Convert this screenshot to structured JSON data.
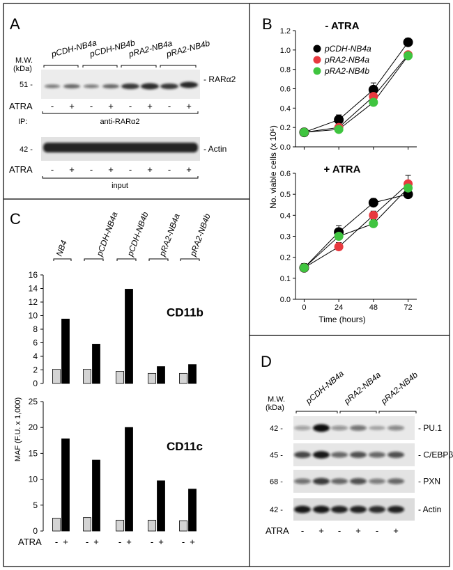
{
  "panel_a": {
    "letter": "A",
    "mw_label": "M.W.",
    "kda_label": "(kDa)",
    "groups": [
      "pCDH-NB4a",
      "pCDH-NB4b",
      "pRA2-NB4a",
      "pRA2-NB4b"
    ],
    "marker_top": "51 -",
    "marker_bottom": "42 -",
    "band_top": "- RARα2",
    "band_bottom": "- Actin",
    "atra_label": "ATRA",
    "ip_label": "IP:",
    "ip_antibody": "anti-RARα2",
    "input_label": "input",
    "treatment": [
      "-",
      "+",
      "-",
      "+",
      "-",
      "+",
      "-",
      "+"
    ]
  },
  "panel_c": {
    "letter": "C",
    "groups": [
      "NB4",
      "pCDH-NB4a",
      "pCDH-NB4b",
      "pRA2-NB4a",
      "pRA2-NB4b"
    ],
    "y_label": "MAF (F.U. x 1,000)",
    "atra_label": "ATRA",
    "treatment": [
      "-",
      "+"
    ]
  },
  "panel_b": {
    "letter": "B",
    "y_label": "No. viable cells (x 10⁶)",
    "x_label": "Time (hours)"
  },
  "panel_d": {
    "letter": "D",
    "mw_label": "M.W.",
    "kda_label": "(kDa)",
    "groups": [
      "pCDH-NB4a",
      "pRA2-NB4a",
      "pRA2-NB4b"
    ],
    "rows": [
      {
        "marker": "42 -",
        "label": "- PU.1"
      },
      {
        "marker": "45 -",
        "label": "- C/EBPβ"
      },
      {
        "marker": "68 -",
        "label": "- PXN"
      },
      {
        "marker": "42 -",
        "label": "- Actin"
      }
    ],
    "atra_label": "ATRA",
    "treatment": [
      "-",
      "+",
      "-",
      "+",
      "-",
      "+"
    ]
  },
  "chart_data": [
    {
      "type": "bar",
      "title": "CD11b",
      "ylabel": "MAF (F.U. x 1,000)",
      "ylim": [
        0,
        16
      ],
      "yticks": [
        0,
        2,
        4,
        6,
        8,
        10,
        12,
        14,
        16
      ],
      "categories": [
        "NB4",
        "pCDH-NB4a",
        "pCDH-NB4b",
        "pRA2-NB4a",
        "pRA2-NB4b"
      ],
      "series": [
        {
          "name": "- ATRA",
          "color": "#d4d4d4",
          "values": [
            2.1,
            2.1,
            1.8,
            1.5,
            1.5
          ]
        },
        {
          "name": "+ ATRA",
          "color": "#000000",
          "values": [
            9.5,
            5.8,
            13.9,
            2.5,
            2.8
          ]
        }
      ]
    },
    {
      "type": "bar",
      "title": "CD11c",
      "ylabel": "MAF (F.U. x 1,000)",
      "ylim": [
        0,
        25
      ],
      "yticks": [
        0,
        5,
        10,
        15,
        20,
        25
      ],
      "categories": [
        "NB4",
        "pCDH-NB4a",
        "pCDH-NB4b",
        "pRA2-NB4a",
        "pRA2-NB4b"
      ],
      "series": [
        {
          "name": "- ATRA",
          "color": "#d4d4d4",
          "values": [
            2.5,
            2.6,
            2.1,
            2.1,
            2.0
          ]
        },
        {
          "name": "+ ATRA",
          "color": "#000000",
          "values": [
            17.8,
            13.7,
            20.0,
            9.7,
            8.1
          ]
        }
      ]
    },
    {
      "type": "line",
      "title": "- ATRA",
      "ylabel": "No. viable cells (x 10⁶)",
      "xlabel": "Time (hours)",
      "x": [
        0,
        24,
        48,
        72
      ],
      "xticks": [
        0,
        24,
        48,
        72
      ],
      "ylim": [
        0,
        1.2
      ],
      "yticks": [
        0.0,
        0.2,
        0.4,
        0.6,
        0.8,
        1.0,
        1.2
      ],
      "series": [
        {
          "name": "pCDH-NB4a",
          "color": "#000000",
          "values": [
            0.15,
            0.28,
            0.59,
            1.08
          ],
          "err": [
            0.03,
            0.05,
            0.07,
            0.04
          ]
        },
        {
          "name": "pRA2-NB4a",
          "color": "#e8393f",
          "values": [
            0.15,
            0.2,
            0.52,
            0.95
          ],
          "err": [
            0.02,
            0.03,
            0.05,
            0.03
          ]
        },
        {
          "name": "pRA2-NB4b",
          "color": "#3fc43f",
          "values": [
            0.15,
            0.18,
            0.46,
            0.94
          ],
          "err": [
            0.02,
            0.02,
            0.04,
            0.03
          ]
        }
      ]
    },
    {
      "type": "line",
      "title": "+ ATRA",
      "ylabel": "No. viable cells (x 10⁶)",
      "xlabel": "Time (hours)",
      "x": [
        0,
        24,
        48,
        72
      ],
      "xticks": [
        0,
        24,
        48,
        72
      ],
      "ylim": [
        0,
        0.6
      ],
      "yticks": [
        0.0,
        0.1,
        0.2,
        0.3,
        0.4,
        0.5,
        0.6
      ],
      "series": [
        {
          "name": "pCDH-NB4a",
          "color": "#000000",
          "values": [
            0.15,
            0.32,
            0.46,
            0.5
          ],
          "err": [
            0.02,
            0.03,
            0.02,
            0.02
          ]
        },
        {
          "name": "pRA2-NB4a",
          "color": "#e8393f",
          "values": [
            0.15,
            0.25,
            0.4,
            0.55
          ],
          "err": [
            0.02,
            0.02,
            0.02,
            0.04
          ]
        },
        {
          "name": "pRA2-NB4b",
          "color": "#3fc43f",
          "values": [
            0.15,
            0.3,
            0.36,
            0.53
          ],
          "err": [
            0.02,
            0.02,
            0.02,
            0.03
          ]
        }
      ]
    }
  ]
}
